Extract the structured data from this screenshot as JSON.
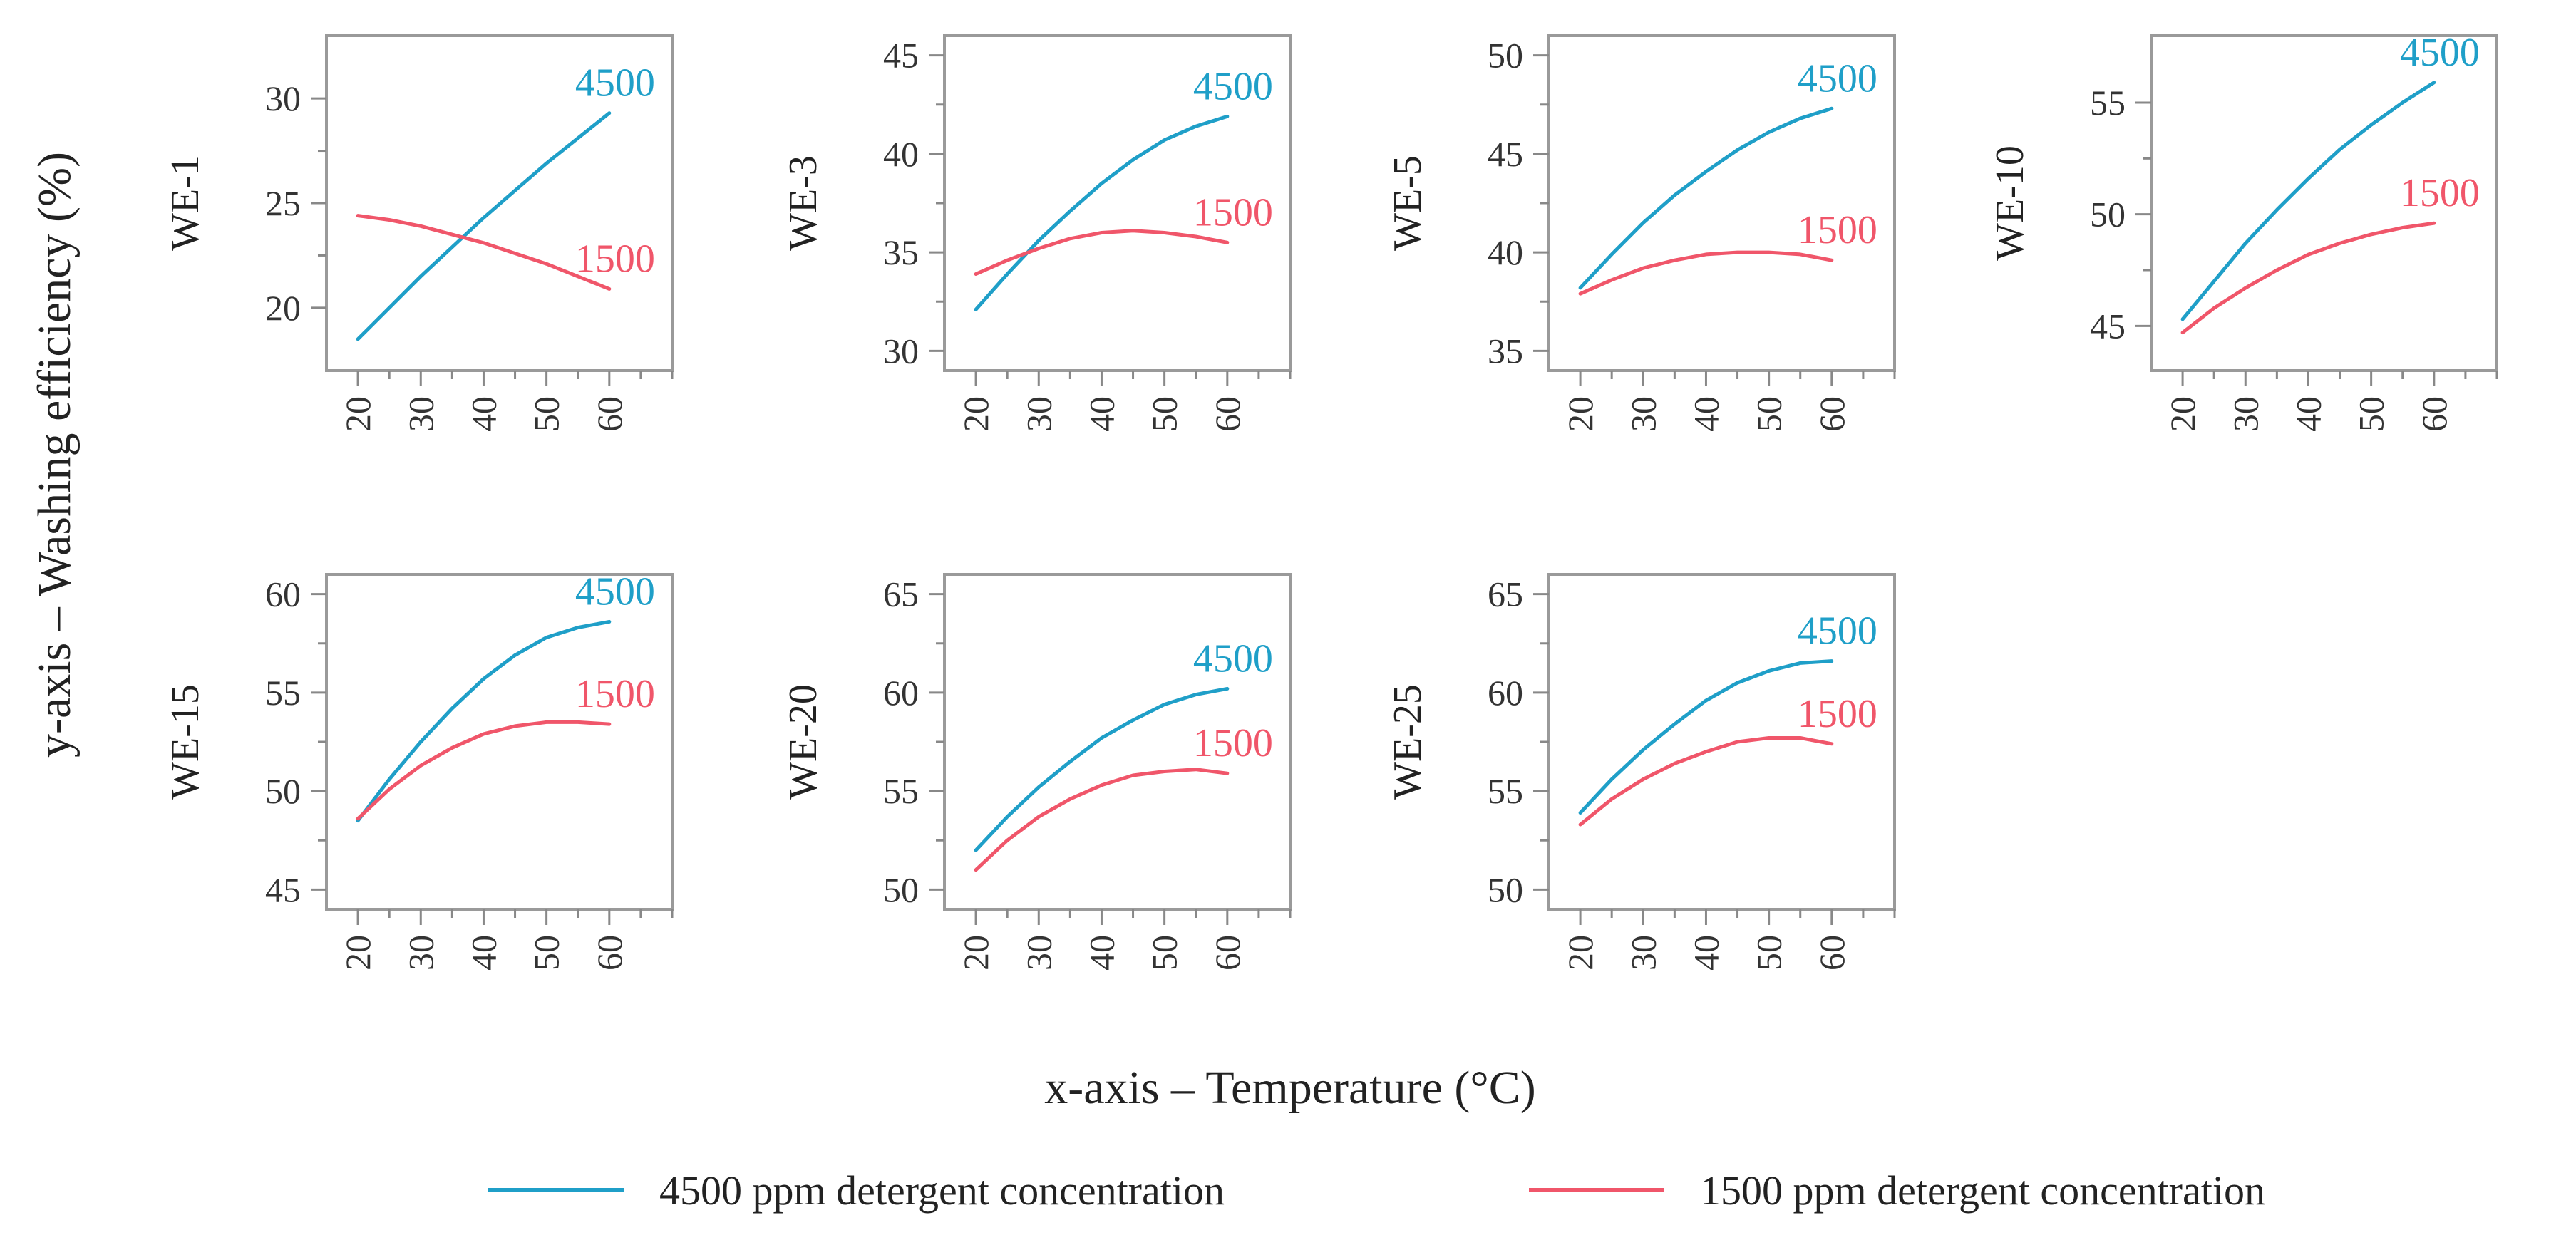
{
  "colors": {
    "series_4500": "#1f9fc8",
    "series_1500": "#f0566a",
    "frame": "#9a9a9a",
    "tick": "#888888",
    "text": "#222222"
  },
  "axes": {
    "ylabel": "y-axis – Washing efficiency (%)",
    "xlabel": "x-axis – Temperature (°C)"
  },
  "legend": {
    "items": [
      {
        "label": "4500 ppm detergent concentration",
        "series": "4500"
      },
      {
        "label": "1500 ppm detergent concentration",
        "series": "1500"
      }
    ]
  },
  "chart_data": [
    {
      "type": "line",
      "title": "WE-1",
      "xlabel": "Temperature (°C)",
      "ylabel": "Washing efficiency (%)",
      "xlim": [
        15,
        70
      ],
      "ylim": [
        17,
        33
      ],
      "xticks": [
        20,
        30,
        40,
        50,
        60
      ],
      "yticks": [
        20,
        25,
        30
      ],
      "x": [
        20,
        25,
        30,
        35,
        40,
        45,
        50,
        55,
        60
      ],
      "series": [
        {
          "name": "4500",
          "end_label": "4500",
          "values": [
            18.5,
            20.0,
            21.5,
            22.9,
            24.3,
            25.6,
            26.9,
            28.1,
            29.3
          ]
        },
        {
          "name": "1500",
          "end_label": "1500",
          "values": [
            24.4,
            24.2,
            23.9,
            23.5,
            23.1,
            22.6,
            22.1,
            21.5,
            20.9
          ]
        }
      ]
    },
    {
      "type": "line",
      "title": "WE-3",
      "xlabel": "Temperature (°C)",
      "ylabel": "Washing efficiency (%)",
      "xlim": [
        15,
        70
      ],
      "ylim": [
        29,
        46
      ],
      "xticks": [
        20,
        30,
        40,
        50,
        60
      ],
      "yticks": [
        30,
        35,
        40,
        45
      ],
      "x": [
        20,
        25,
        30,
        35,
        40,
        45,
        50,
        55,
        60
      ],
      "series": [
        {
          "name": "4500",
          "end_label": "4500",
          "values": [
            32.1,
            33.9,
            35.6,
            37.1,
            38.5,
            39.7,
            40.7,
            41.4,
            41.9
          ]
        },
        {
          "name": "1500",
          "end_label": "1500",
          "values": [
            33.9,
            34.6,
            35.2,
            35.7,
            36.0,
            36.1,
            36.0,
            35.8,
            35.5
          ]
        }
      ]
    },
    {
      "type": "line",
      "title": "WE-5",
      "xlabel": "Temperature (°C)",
      "ylabel": "Washing efficiency (%)",
      "xlim": [
        15,
        70
      ],
      "ylim": [
        34,
        51
      ],
      "xticks": [
        20,
        30,
        40,
        50,
        60
      ],
      "yticks": [
        35,
        40,
        45,
        50
      ],
      "x": [
        20,
        25,
        30,
        35,
        40,
        45,
        50,
        55,
        60
      ],
      "series": [
        {
          "name": "4500",
          "end_label": "4500",
          "values": [
            38.2,
            39.9,
            41.5,
            42.9,
            44.1,
            45.2,
            46.1,
            46.8,
            47.3
          ]
        },
        {
          "name": "1500",
          "end_label": "1500",
          "values": [
            37.9,
            38.6,
            39.2,
            39.6,
            39.9,
            40.0,
            40.0,
            39.9,
            39.6
          ]
        }
      ]
    },
    {
      "type": "line",
      "title": "WE-10",
      "xlabel": "Temperature (°C)",
      "ylabel": "Washing efficiency (%)",
      "xlim": [
        15,
        70
      ],
      "ylim": [
        43,
        58
      ],
      "xticks": [
        20,
        30,
        40,
        50,
        60
      ],
      "yticks": [
        45,
        50,
        55
      ],
      "x": [
        20,
        25,
        30,
        35,
        40,
        45,
        50,
        55,
        60
      ],
      "series": [
        {
          "name": "4500",
          "end_label": "4500",
          "values": [
            45.3,
            47.0,
            48.7,
            50.2,
            51.6,
            52.9,
            54.0,
            55.0,
            55.9
          ]
        },
        {
          "name": "1500",
          "end_label": "1500",
          "values": [
            44.7,
            45.8,
            46.7,
            47.5,
            48.2,
            48.7,
            49.1,
            49.4,
            49.6
          ]
        }
      ]
    },
    {
      "type": "line",
      "title": "WE-15",
      "xlabel": "Temperature (°C)",
      "ylabel": "Washing efficiency (%)",
      "xlim": [
        15,
        70
      ],
      "ylim": [
        44,
        61
      ],
      "xticks": [
        20,
        30,
        40,
        50,
        60
      ],
      "yticks": [
        45,
        50,
        55,
        60
      ],
      "x": [
        20,
        25,
        30,
        35,
        40,
        45,
        50,
        55,
        60
      ],
      "series": [
        {
          "name": "4500",
          "end_label": "4500",
          "values": [
            48.5,
            50.6,
            52.5,
            54.2,
            55.7,
            56.9,
            57.8,
            58.3,
            58.6
          ]
        },
        {
          "name": "1500",
          "end_label": "1500",
          "values": [
            48.6,
            50.1,
            51.3,
            52.2,
            52.9,
            53.3,
            53.5,
            53.5,
            53.4
          ]
        }
      ]
    },
    {
      "type": "line",
      "title": "WE-20",
      "xlabel": "Temperature (°C)",
      "ylabel": "Washing efficiency (%)",
      "xlim": [
        15,
        70
      ],
      "ylim": [
        49,
        66
      ],
      "xticks": [
        20,
        30,
        40,
        50,
        60
      ],
      "yticks": [
        50,
        55,
        60,
        65
      ],
      "x": [
        20,
        25,
        30,
        35,
        40,
        45,
        50,
        55,
        60
      ],
      "series": [
        {
          "name": "4500",
          "end_label": "4500",
          "values": [
            52.0,
            53.7,
            55.2,
            56.5,
            57.7,
            58.6,
            59.4,
            59.9,
            60.2
          ]
        },
        {
          "name": "1500",
          "end_label": "1500",
          "values": [
            51.0,
            52.5,
            53.7,
            54.6,
            55.3,
            55.8,
            56.0,
            56.1,
            55.9
          ]
        }
      ]
    },
    {
      "type": "line",
      "title": "WE-25",
      "xlabel": "Temperature (°C)",
      "ylabel": "Washing efficiency (%)",
      "xlim": [
        15,
        70
      ],
      "ylim": [
        49,
        66
      ],
      "xticks": [
        20,
        30,
        40,
        50,
        60
      ],
      "yticks": [
        50,
        55,
        60,
        65
      ],
      "x": [
        20,
        25,
        30,
        35,
        40,
        45,
        50,
        55,
        60
      ],
      "series": [
        {
          "name": "4500",
          "end_label": "4500",
          "values": [
            53.9,
            55.6,
            57.1,
            58.4,
            59.6,
            60.5,
            61.1,
            61.5,
            61.6
          ]
        },
        {
          "name": "1500",
          "end_label": "1500",
          "values": [
            53.3,
            54.6,
            55.6,
            56.4,
            57.0,
            57.5,
            57.7,
            57.7,
            57.4
          ]
        }
      ]
    }
  ]
}
